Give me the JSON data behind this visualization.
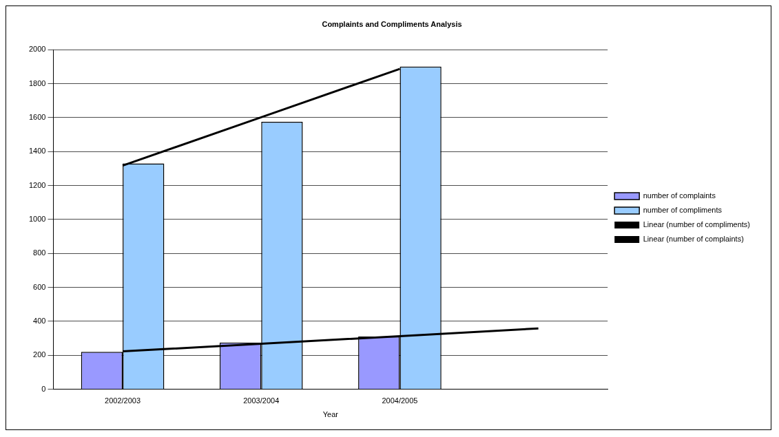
{
  "chart_data": {
    "type": "bar",
    "title": "Complaints and Compliments Analysis",
    "xlabel": "Year",
    "categories": [
      "2002/2003",
      "2003/2004",
      "2004/2005",
      null
    ],
    "series": [
      {
        "name": "number of complaints",
        "color": "#9999ff",
        "values": [
          220,
          275,
          310,
          null
        ]
      },
      {
        "name": "number of compliments",
        "color": "#99ccff",
        "values": [
          1330,
          1575,
          1900,
          null
        ]
      },
      {
        "name": "Linear (number of compliments)",
        "type": "line",
        "color": "#000000",
        "values": [
          1317,
          1602,
          1887,
          null
        ]
      },
      {
        "name": "Linear (number of complaints)",
        "type": "line",
        "color": "#000000",
        "values": [
          223,
          268,
          313,
          358
        ]
      }
    ],
    "ylim": [
      0,
      2000
    ],
    "yticks": [
      0,
      200,
      400,
      600,
      800,
      1000,
      1200,
      1400,
      1600,
      1800,
      2000
    ],
    "grid": "y",
    "legend": "right"
  }
}
